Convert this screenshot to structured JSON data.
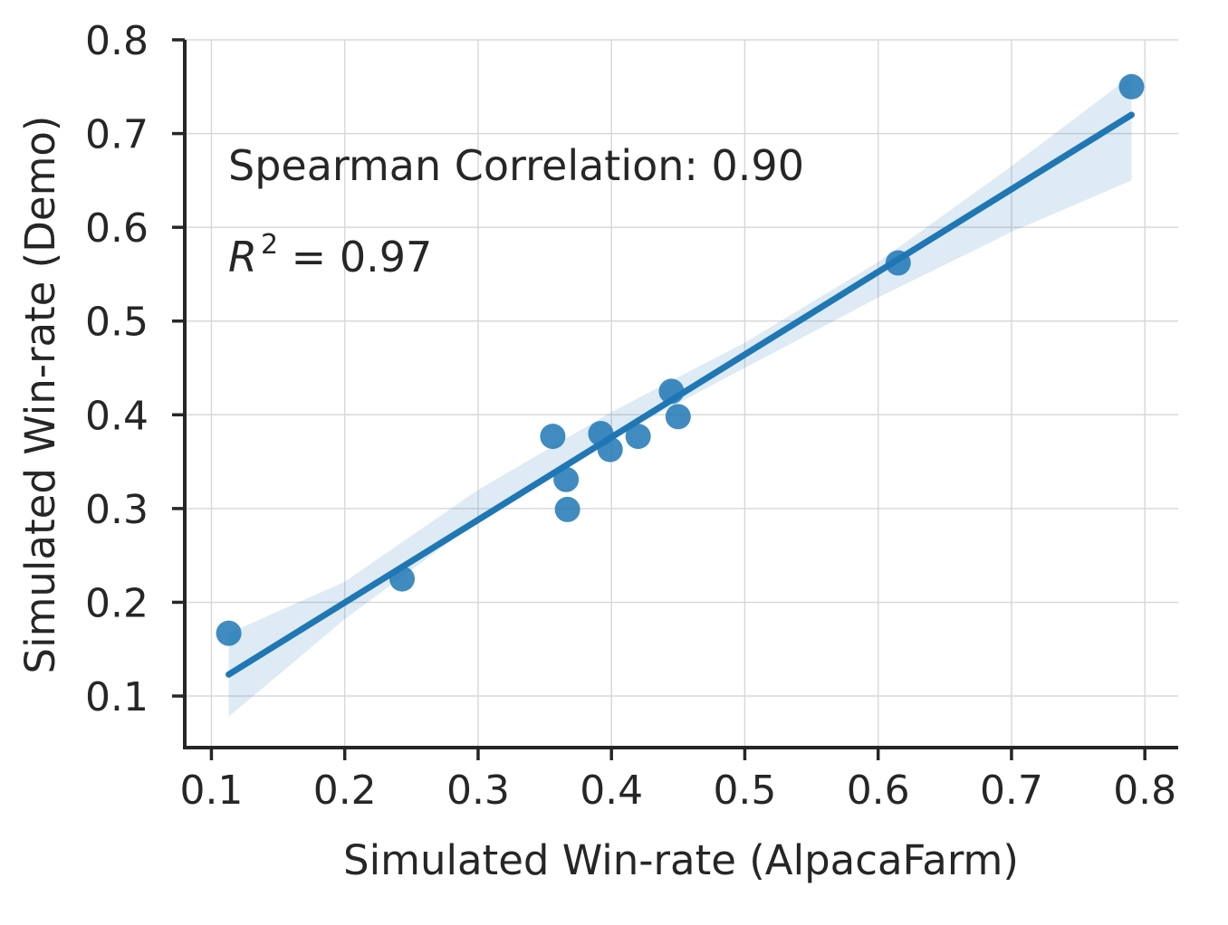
{
  "chart_data": {
    "type": "scatter",
    "xlabel": "Simulated Win-rate (AlpacaFarm)",
    "ylabel": "Simulated Win-rate (Demo)",
    "xlim": [
      0.08,
      0.825
    ],
    "ylim": [
      0.045,
      0.8
    ],
    "xticks": [
      0.1,
      0.2,
      0.3,
      0.4,
      0.5,
      0.6,
      0.7,
      0.8
    ],
    "yticks": [
      0.1,
      0.2,
      0.3,
      0.4,
      0.5,
      0.6,
      0.7,
      0.8
    ],
    "xtick_labels": [
      "0.1",
      "0.2",
      "0.3",
      "0.4",
      "0.5",
      "0.6",
      "0.7",
      "0.8"
    ],
    "ytick_labels": [
      "0.1",
      "0.2",
      "0.3",
      "0.4",
      "0.5",
      "0.6",
      "0.7",
      "0.8"
    ],
    "grid": true,
    "color": "#1f77b4",
    "points": [
      {
        "x": 0.113,
        "y": 0.167
      },
      {
        "x": 0.243,
        "y": 0.225
      },
      {
        "x": 0.356,
        "y": 0.377
      },
      {
        "x": 0.366,
        "y": 0.331
      },
      {
        "x": 0.367,
        "y": 0.299
      },
      {
        "x": 0.392,
        "y": 0.38
      },
      {
        "x": 0.399,
        "y": 0.363
      },
      {
        "x": 0.42,
        "y": 0.377
      },
      {
        "x": 0.445,
        "y": 0.425
      },
      {
        "x": 0.45,
        "y": 0.398
      },
      {
        "x": 0.615,
        "y": 0.562
      },
      {
        "x": 0.79,
        "y": 0.75
      }
    ],
    "regression": {
      "x": [
        0.113,
        0.79
      ],
      "y": [
        0.123,
        0.72
      ]
    },
    "confidence_band": {
      "x": [
        0.113,
        0.2,
        0.3,
        0.4,
        0.5,
        0.6,
        0.7,
        0.79
      ],
      "upper": [
        0.167,
        0.222,
        0.32,
        0.403,
        0.477,
        0.563,
        0.665,
        0.762
      ],
      "lower": [
        0.078,
        0.182,
        0.287,
        0.375,
        0.45,
        0.525,
        0.595,
        0.65
      ]
    },
    "annotations": {
      "spearman": "Spearman Correlation: 0.90",
      "r2_symbol": "R",
      "r2_exponent": "2",
      "r2_value": " = 0.97"
    }
  }
}
